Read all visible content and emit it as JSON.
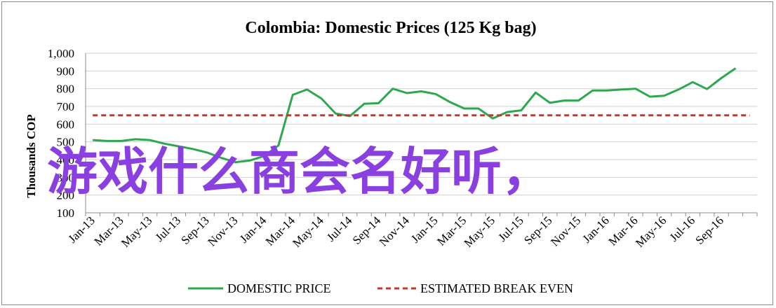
{
  "chart_data": {
    "type": "line",
    "title": "Colombia:  Domestic Prices (125 Kg bag)",
    "ylabel": "Thousands COP",
    "xlabel": "",
    "ylim": [
      100,
      1000
    ],
    "yticks": [
      "100",
      "200",
      "300",
      "400",
      "500",
      "600",
      "700",
      "800",
      "900",
      "1,000"
    ],
    "grid": true,
    "legend_position": "bottom",
    "x_tick_labels": [
      "Jan-13",
      "Mar-13",
      "May-13",
      "Jul-13",
      "Sep-13",
      "Nov-13",
      "Jan-14",
      "Mar-14",
      "May-14",
      "Jul-14",
      "Sep-14",
      "Nov-14",
      "Jan-15",
      "Mar-15",
      "May-15",
      "Jul-15",
      "Sep-15",
      "Nov-15",
      "Jan-16",
      "Mar-16",
      "May-16",
      "Jul-16",
      "Sep-16"
    ],
    "x": [
      "Jan-13",
      "Feb-13",
      "Mar-13",
      "Apr-13",
      "May-13",
      "Jun-13",
      "Jul-13",
      "Aug-13",
      "Sep-13",
      "Oct-13",
      "Nov-13",
      "Dec-13",
      "Jan-14",
      "Feb-14",
      "Mar-14",
      "Apr-14",
      "May-14",
      "Jun-14",
      "Jul-14",
      "Aug-14",
      "Sep-14",
      "Oct-14",
      "Nov-14",
      "Dec-14",
      "Jan-15",
      "Feb-15",
      "Mar-15",
      "Apr-15",
      "May-15",
      "Jun-15",
      "Jul-15",
      "Aug-15",
      "Sep-15",
      "Oct-15",
      "Nov-15",
      "Dec-15",
      "Jan-16",
      "Feb-16",
      "Mar-16",
      "Apr-16",
      "May-16",
      "Jun-16",
      "Jul-16",
      "Aug-16",
      "Sep-16",
      "Oct-16",
      "Nov-16"
    ],
    "series": [
      {
        "name": "DOMESTIC PRICE",
        "color": "#2ea84f",
        "style": "solid",
        "values": [
          510,
          505,
          505,
          515,
          510,
          490,
          475,
          460,
          440,
          410,
          385,
          395,
          420,
          480,
          765,
          795,
          745,
          660,
          645,
          715,
          718,
          800,
          775,
          785,
          770,
          725,
          688,
          688,
          632,
          668,
          678,
          778,
          720,
          733,
          733,
          790,
          790,
          795,
          800,
          755,
          760,
          795,
          837,
          798,
          860,
          915,
          null
        ]
      },
      {
        "name": "ESTIMATED BREAK EVEN",
        "color": "#c0392b",
        "style": "dashed",
        "values": [
          650,
          650,
          650,
          650,
          650,
          650,
          650,
          650,
          650,
          650,
          650,
          650,
          650,
          650,
          650,
          650,
          650,
          650,
          650,
          650,
          650,
          650,
          650,
          650,
          650,
          650,
          650,
          650,
          650,
          650,
          650,
          650,
          650,
          650,
          650,
          650,
          650,
          650,
          650,
          650,
          650,
          650,
          650,
          650,
          650,
          650,
          650
        ]
      }
    ]
  },
  "overlay_text": "游戏什么商会名好听，",
  "colors": {
    "grid": "#d0d0d0",
    "axis": "#8c8c8c",
    "overlay": "#8a3fe0"
  }
}
